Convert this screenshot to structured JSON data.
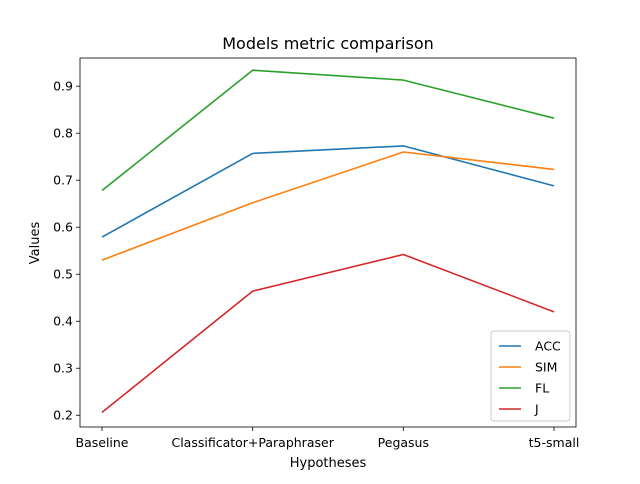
{
  "chart_data": {
    "type": "line",
    "title": "Models metric comparison",
    "xlabel": "Hypotheses",
    "ylabel": "Values",
    "categories": [
      "Baseline",
      "Classificator+Paraphraser",
      "Pegasus",
      "t5-small"
    ],
    "ylim": [
      0.175,
      0.96
    ],
    "yticks": [
      0.2,
      0.3,
      0.4,
      0.5,
      0.6,
      0.7,
      0.8,
      0.9
    ],
    "ytick_labels": [
      "0.2",
      "0.3",
      "0.4",
      "0.5",
      "0.6",
      "0.7",
      "0.8",
      "0.9"
    ],
    "grid": false,
    "legend_position": "lower right",
    "series": [
      {
        "name": "ACC",
        "color": "#1f77b4",
        "values": [
          0.579,
          0.757,
          0.773,
          0.688
        ]
      },
      {
        "name": "SIM",
        "color": "#ff7f0e",
        "values": [
          0.53,
          0.652,
          0.76,
          0.723
        ]
      },
      {
        "name": "FL",
        "color": "#2ca02c",
        "values": [
          0.678,
          0.934,
          0.913,
          0.832
        ]
      },
      {
        "name": "J",
        "color": "#d62728",
        "values": [
          0.206,
          0.464,
          0.542,
          0.42
        ]
      }
    ]
  }
}
